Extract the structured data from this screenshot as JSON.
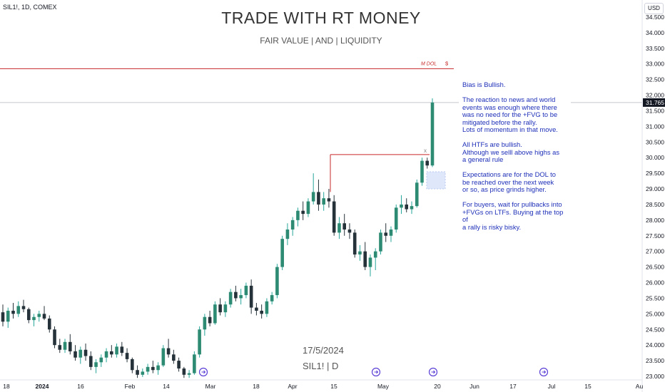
{
  "header": {
    "symbol": "SIL1!, 1D, COMEX",
    "title": "TRADE WITH RT MONEY",
    "subtitle": "FAIR VALUE   | AND |   LIQUIDITY",
    "currency_button": "USD"
  },
  "watermark": {
    "date": "17/5/2024",
    "symbol": "SIL1! | D"
  },
  "annotations": {
    "dol_label": "M DOL",
    "dol_symbol": "$",
    "sweep_mark": "x",
    "last_price": "31.765",
    "note_paragraphs": [
      "Bias is Bullish.",
      "The reaction to news and world\nevents was enough where there\nwas no need for the +FVG to be\nmitigated before the rally.\nLots of momentum in that move.",
      "All HTFs are bullish.\nAlthough we selll above highs as\na general rule",
      "Expectations are for the DOL to\nbe reached over the next week\nor so,  as price grinds higher.",
      "For buyers, wait for pullbacks into\n+FVGs on LTFs.  Buying at the top of\na rally is risky bisky."
    ]
  },
  "colors": {
    "up": "#26a69a",
    "up_body": "#2e8b73",
    "down": "#26323a",
    "level_line": "#c62828",
    "note_text": "#1e2fb8",
    "fvg": "#dfe8fa",
    "last_price_tag": "#131722"
  },
  "chart_data": {
    "type": "candlestick",
    "y_axis_ticks": [
      "23.000",
      "23.500",
      "24.000",
      "24.500",
      "25.000",
      "25.500",
      "26.000",
      "26.500",
      "27.000",
      "27.500",
      "28.000",
      "28.500",
      "29.000",
      "29.500",
      "30.000",
      "30.500",
      "31.000",
      "31.500",
      "32.000",
      "32.500",
      "33.000",
      "33.500",
      "34.000",
      "34.500"
    ],
    "ylim": [
      22.9,
      34.6
    ],
    "x_axis_ticks": [
      "18",
      "2024",
      "16",
      "Feb",
      "14",
      "Mar",
      "18",
      "Apr",
      "15",
      "May",
      "20",
      "Jun",
      "17",
      "Jul",
      "15",
      "Au"
    ],
    "dol_level": 32.85,
    "swing_high_level": 30.1,
    "fvg_zone": [
      29.0,
      29.55
    ],
    "ohlc": [
      [
        25.05,
        25.3,
        24.6,
        24.75
      ],
      [
        24.75,
        25.2,
        24.55,
        25.1
      ],
      [
        25.1,
        25.35,
        24.85,
        25.0
      ],
      [
        25.0,
        25.4,
        24.9,
        25.25
      ],
      [
        25.25,
        25.45,
        25.05,
        25.15
      ],
      [
        25.15,
        25.2,
        24.7,
        24.8
      ],
      [
        24.8,
        25.0,
        24.6,
        24.9
      ],
      [
        24.9,
        25.1,
        24.75,
        25.0
      ],
      [
        25.0,
        25.25,
        24.8,
        24.85
      ],
      [
        24.85,
        24.95,
        24.4,
        24.5
      ],
      [
        24.5,
        24.6,
        23.9,
        24.0
      ],
      [
        24.0,
        24.2,
        23.75,
        23.85
      ],
      [
        23.85,
        24.2,
        23.75,
        24.1
      ],
      [
        24.1,
        24.35,
        23.7,
        23.8
      ],
      [
        23.8,
        24.0,
        23.5,
        23.6
      ],
      [
        23.6,
        23.95,
        23.4,
        23.85
      ],
      [
        23.85,
        24.05,
        23.5,
        23.65
      ],
      [
        23.65,
        23.8,
        23.2,
        23.3
      ],
      [
        23.3,
        23.55,
        23.1,
        23.45
      ],
      [
        23.45,
        23.7,
        23.3,
        23.6
      ],
      [
        23.6,
        23.9,
        23.45,
        23.8
      ],
      [
        23.8,
        24.0,
        23.6,
        23.7
      ],
      [
        23.7,
        24.05,
        23.6,
        23.95
      ],
      [
        23.95,
        24.1,
        23.65,
        23.75
      ],
      [
        23.75,
        23.9,
        23.45,
        23.55
      ],
      [
        23.55,
        23.6,
        23.1,
        23.2
      ],
      [
        23.2,
        23.35,
        22.95,
        23.05
      ],
      [
        23.05,
        23.25,
        22.98,
        23.15
      ],
      [
        23.15,
        23.4,
        23.05,
        23.3
      ],
      [
        23.3,
        23.5,
        23.1,
        23.2
      ],
      [
        23.2,
        23.45,
        23.05,
        23.35
      ],
      [
        23.35,
        24.0,
        23.3,
        23.9
      ],
      [
        23.9,
        24.2,
        23.6,
        23.7
      ],
      [
        23.7,
        23.85,
        23.4,
        23.5
      ],
      [
        23.5,
        23.6,
        23.15,
        23.25
      ],
      [
        23.25,
        23.3,
        22.95,
        23.05
      ],
      [
        23.05,
        23.2,
        22.95,
        23.1
      ],
      [
        23.1,
        23.8,
        23.05,
        23.7
      ],
      [
        23.7,
        24.6,
        23.6,
        24.5
      ],
      [
        24.5,
        25.0,
        24.3,
        24.9
      ],
      [
        24.9,
        25.1,
        24.6,
        24.7
      ],
      [
        24.7,
        25.4,
        24.65,
        25.3
      ],
      [
        25.3,
        25.5,
        24.95,
        25.05
      ],
      [
        25.05,
        25.4,
        24.9,
        25.3
      ],
      [
        25.3,
        25.8,
        25.2,
        25.7
      ],
      [
        25.7,
        25.9,
        25.4,
        25.5
      ],
      [
        25.5,
        25.8,
        25.3,
        25.6
      ],
      [
        25.6,
        26.0,
        25.5,
        25.9
      ],
      [
        25.9,
        26.1,
        25.0,
        25.2
      ],
      [
        25.2,
        25.35,
        24.95,
        25.1
      ],
      [
        25.1,
        25.3,
        24.85,
        25.0
      ],
      [
        25.0,
        25.5,
        24.9,
        25.4
      ],
      [
        25.4,
        25.7,
        25.3,
        25.6
      ],
      [
        25.6,
        26.6,
        25.5,
        26.5
      ],
      [
        26.5,
        27.5,
        26.4,
        27.4
      ],
      [
        27.4,
        27.9,
        27.2,
        27.7
      ],
      [
        27.7,
        28.1,
        27.5,
        28.0
      ],
      [
        28.0,
        28.4,
        27.8,
        28.3
      ],
      [
        28.3,
        28.6,
        28.0,
        28.2
      ],
      [
        28.2,
        28.7,
        28.1,
        28.6
      ],
      [
        28.6,
        29.5,
        28.5,
        28.9
      ],
      [
        28.9,
        29.3,
        28.3,
        28.5
      ],
      [
        28.5,
        28.9,
        28.3,
        28.7
      ],
      [
        28.7,
        29.0,
        28.4,
        28.6
      ],
      [
        28.6,
        28.8,
        27.5,
        27.6
      ],
      [
        27.6,
        28.1,
        27.4,
        27.9
      ],
      [
        27.9,
        28.2,
        27.5,
        27.7
      ],
      [
        27.7,
        27.9,
        27.4,
        27.6
      ],
      [
        27.6,
        27.7,
        26.8,
        26.9
      ],
      [
        26.9,
        27.2,
        26.7,
        27.0
      ],
      [
        27.0,
        27.3,
        26.4,
        26.5
      ],
      [
        26.5,
        26.9,
        26.2,
        26.8
      ],
      [
        26.8,
        27.1,
        26.4,
        27.0
      ],
      [
        27.0,
        27.7,
        26.9,
        27.6
      ],
      [
        27.6,
        27.9,
        27.3,
        27.5
      ],
      [
        27.5,
        27.8,
        27.3,
        27.7
      ],
      [
        27.7,
        28.5,
        27.6,
        28.4
      ],
      [
        28.4,
        28.8,
        28.2,
        28.5
      ],
      [
        28.5,
        28.7,
        28.25,
        28.35
      ],
      [
        28.35,
        28.6,
        28.2,
        28.45
      ],
      [
        28.45,
        29.3,
        28.4,
        29.2
      ],
      [
        29.2,
        30.0,
        29.1,
        29.9
      ],
      [
        29.9,
        30.0,
        29.65,
        29.75
      ],
      [
        29.75,
        31.9,
        29.7,
        31.765
      ]
    ]
  }
}
